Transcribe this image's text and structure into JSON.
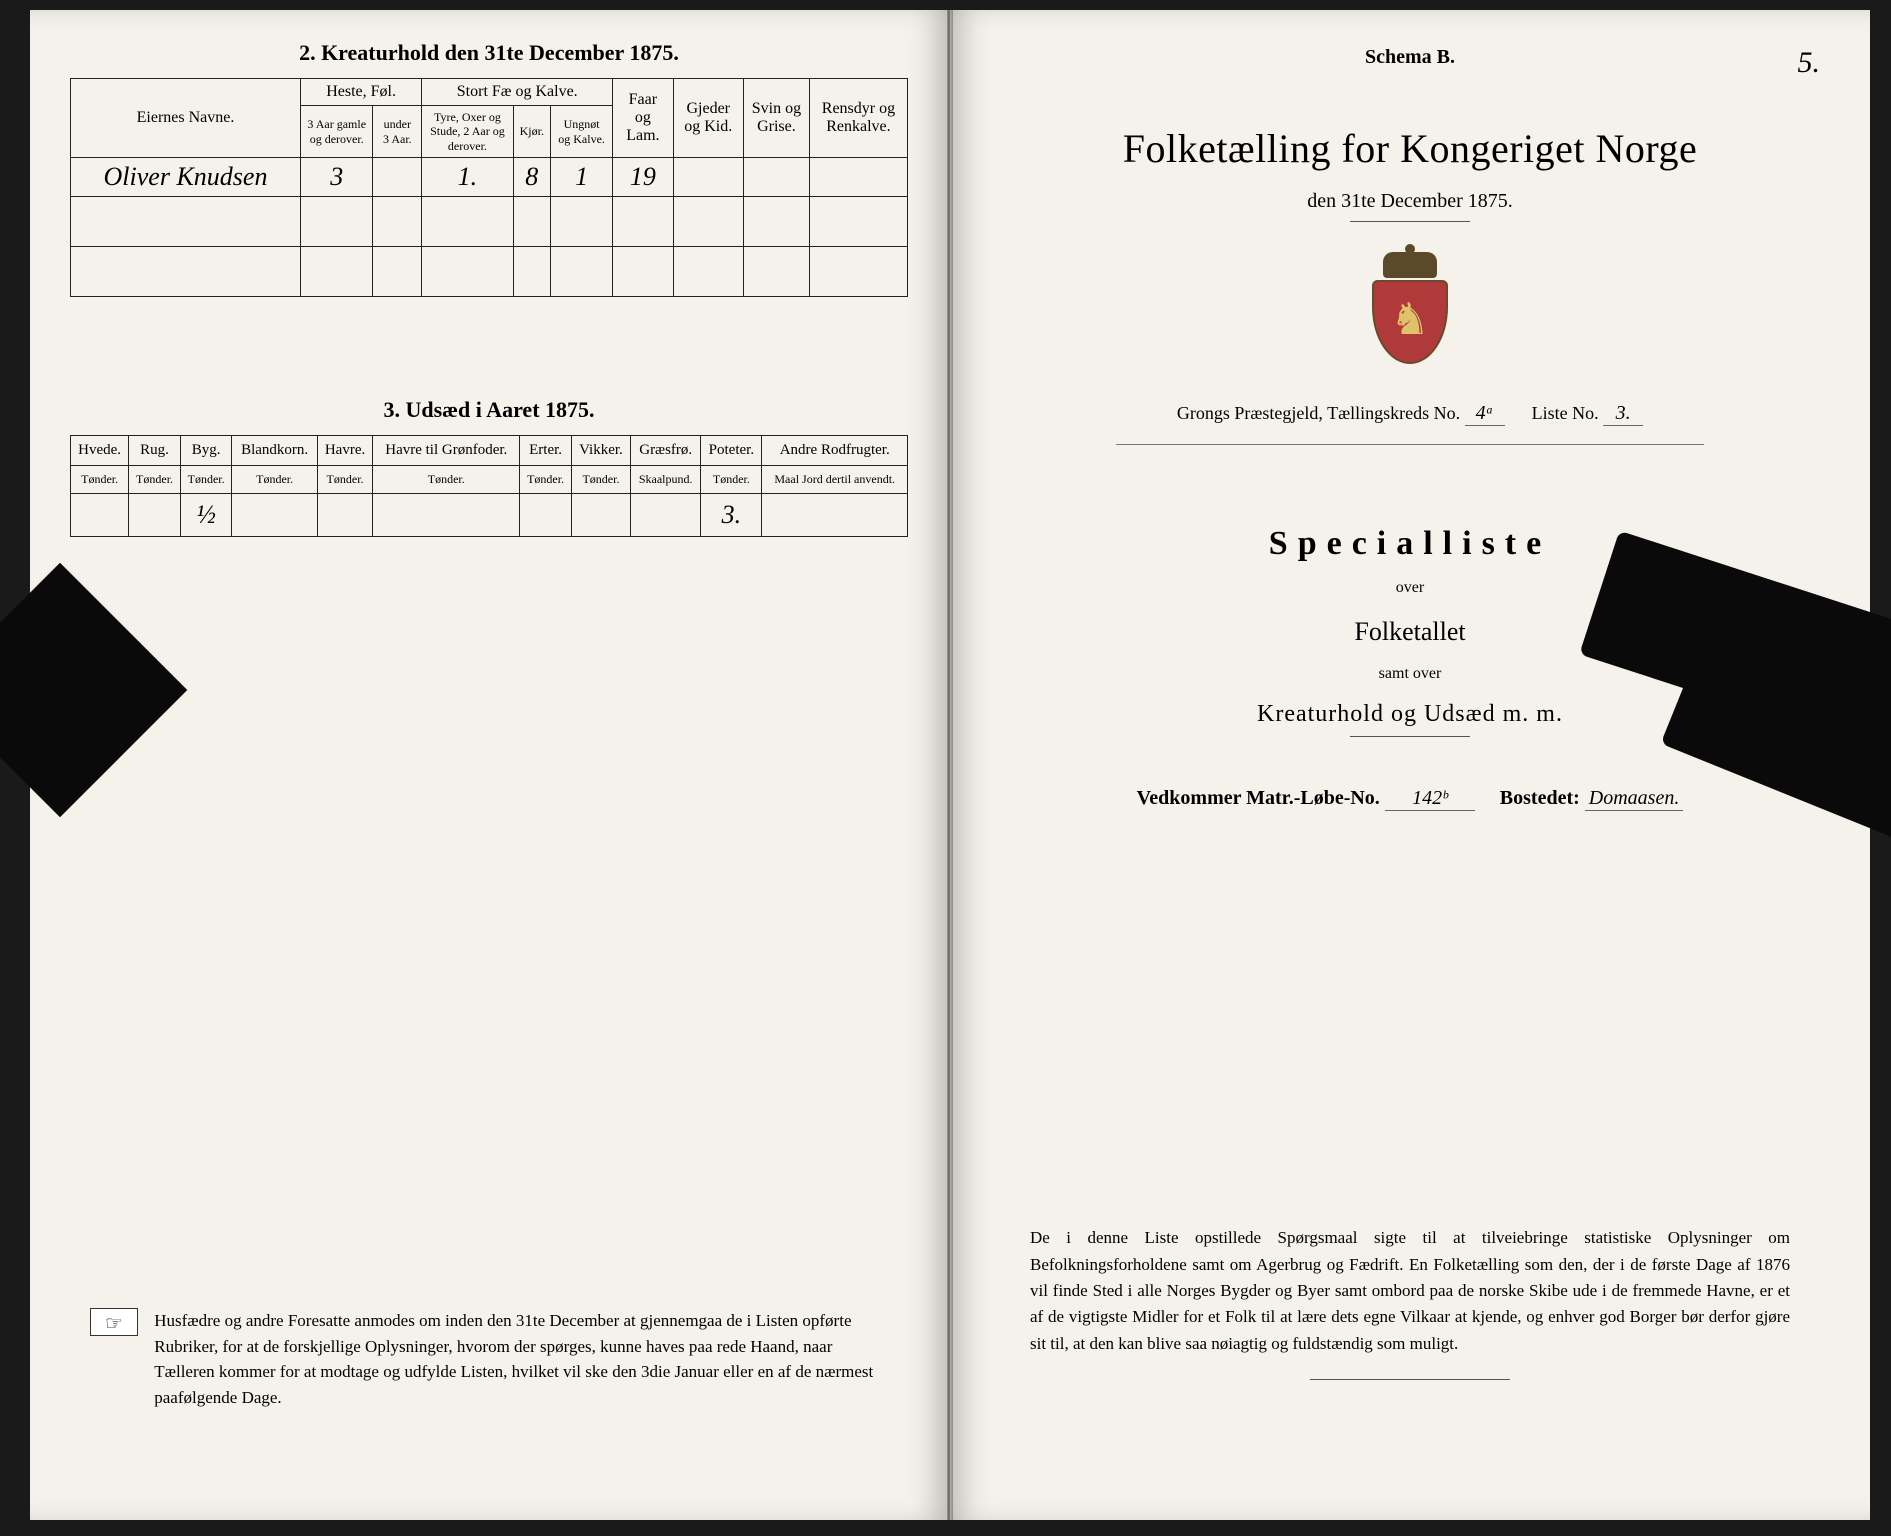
{
  "left": {
    "section2_title": "2.  Kreaturhold den 31te December 1875.",
    "headers": {
      "eiernes_navne": "Eiernes Navne.",
      "heste_fol": "Heste, Føl.",
      "stort_fae": "Stort Fæ og Kalve.",
      "faar_lam": "Faar og Lam.",
      "gjeder_kid": "Gjeder og Kid.",
      "svin_grise": "Svin og Grise.",
      "rensdyr": "Rensdyr og Renkalve.",
      "heste_sub1": "3 Aar gamle og derover.",
      "heste_sub2": "under 3 Aar.",
      "fae_sub1": "Tyre, Oxer og Stude, 2 Aar og derover.",
      "fae_sub2": "Kjør.",
      "fae_sub3": "Ungnøt og Kalve."
    },
    "row": {
      "owner": "Oliver Knudsen",
      "heste1": "3",
      "heste2": "",
      "fae1": "1.",
      "fae2": "8",
      "fae3": "1",
      "faar": "19",
      "gjeder": "",
      "svin": "",
      "rensdyr": ""
    },
    "section3_title": "3.  Udsæd i Aaret 1875.",
    "udsaed_headers": {
      "hvede": "Hvede.",
      "rug": "Rug.",
      "byg": "Byg.",
      "blandkorn": "Blandkorn.",
      "havre": "Havre.",
      "havre_gron": "Havre til Grønfoder.",
      "erter": "Erter.",
      "vikker": "Vikker.",
      "graesfro": "Græsfrø.",
      "poteter": "Poteter.",
      "andre": "Andre Rodfrugter.",
      "tonder": "Tønder.",
      "skaalpund": "Skaalpund.",
      "maal": "Maal Jord dertil anvendt."
    },
    "udsaed_row": {
      "hvede": "",
      "rug": "",
      "byg": "½",
      "blandkorn": "",
      "havre": "",
      "havre_gron": "",
      "erter": "",
      "vikker": "",
      "graesfro": "",
      "poteter": "3.",
      "andre": ""
    },
    "footnote": "Husfædre og andre Foresatte anmodes om inden den 31te December at gjennemgaa de i Listen opførte Rubriker, for at de forskjellige Oplysninger, hvorom der spørges, kunne haves paa rede Haand, naar Tælleren kommer for at modtage og udfylde Listen, hvilket vil ske den 3die Januar eller en af de nærmest paafølgende Dage.",
    "pointer_glyph": "☞"
  },
  "right": {
    "schema": "Schema B.",
    "page_number": "5.",
    "title": "Folketælling for Kongeriget Norge",
    "date_line": "den 31te December 1875.",
    "parish_line_prefix": "Grongs Præstegjeld,   Tællingskreds No.",
    "kreds_no": "4ᵃ",
    "liste_label": "Liste No.",
    "liste_no": "3.",
    "specialliste": "Specialliste",
    "over": "over",
    "folketallet": "Folketallet",
    "samt_over": "samt over",
    "kreaturhold": "Kreaturhold og Udsæd m. m.",
    "vedkommer_label": "Vedkommer Matr.-Løbe-No.",
    "matr_no": "142ᵇ",
    "bosted_label": "Bostedet:",
    "bosted": "Domaasen.",
    "footnote": "De i denne Liste opstillede Spørgsmaal sigte til at tilveiebringe statistiske Oplysninger om Befolkningsforholdene samt om Agerbrug og Fædrift.  En Folketælling som den, der i de første Dage af 1876 vil finde Sted i alle Norges Bygder og Byer samt ombord paa de norske Skibe ude i de fremmede Havne, er et af de vigtigste Midler for et Folk til at lære dets egne Vilkaar at kjende, og enhver god Borger bør derfor gjøre sit til, at den kan blive saa nøiagtig og fuldstændig som muligt."
  },
  "colors": {
    "page_bg": "#f4f2ea",
    "ink": "#222222",
    "shield_red": "#b03a3a",
    "shield_gold": "#e0c26a"
  }
}
